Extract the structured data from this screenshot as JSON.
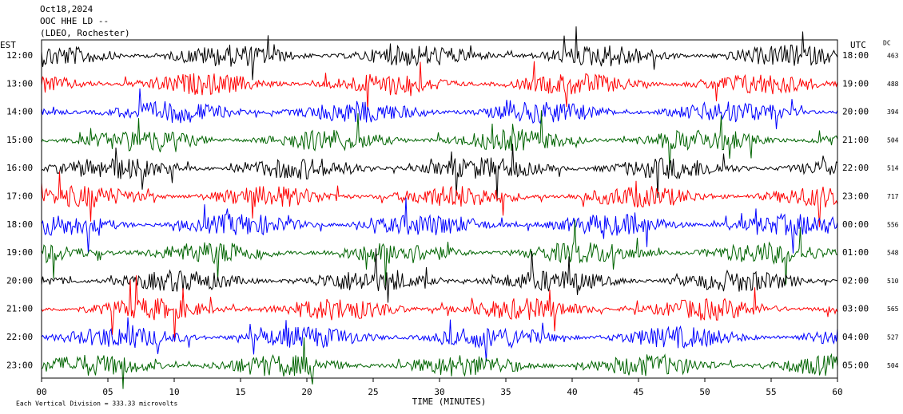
{
  "chart_data": {
    "type": "seismogram",
    "title_lines": [
      "Oct18,2024",
      "OOC HHE LD --",
      "(LDEO, Rochester)"
    ],
    "left_axis_label": "EST",
    "right_axis_label": "UTC",
    "dc_label": "DC",
    "rows": [
      {
        "est": "12:00",
        "utc": "18:00",
        "dc": "463"
      },
      {
        "est": "13:00",
        "utc": "19:00",
        "dc": "488"
      },
      {
        "est": "14:00",
        "utc": "20:00",
        "dc": "394"
      },
      {
        "est": "15:00",
        "utc": "21:00",
        "dc": "504"
      },
      {
        "est": "16:00",
        "utc": "22:00",
        "dc": "514"
      },
      {
        "est": "17:00",
        "utc": "23:00",
        "dc": "717"
      },
      {
        "est": "18:00",
        "utc": "00:00",
        "dc": "556"
      },
      {
        "est": "19:00",
        "utc": "01:00",
        "dc": "548"
      },
      {
        "est": "20:00",
        "utc": "02:00",
        "dc": "510"
      },
      {
        "est": "21:00",
        "utc": "03:00",
        "dc": "565"
      },
      {
        "est": "22:00",
        "utc": "04:00",
        "dc": "527"
      },
      {
        "est": "23:00",
        "utc": "05:00",
        "dc": "504"
      }
    ],
    "trace_colors": [
      "#000000",
      "#ff0000",
      "#0000ff",
      "#006400"
    ],
    "xlim": [
      0,
      60
    ],
    "xticks": [
      {
        "value": 0,
        "label": "00"
      },
      {
        "value": 5,
        "label": "05"
      },
      10,
      15,
      20,
      25,
      30,
      35,
      40,
      45,
      50,
      55,
      60
    ],
    "xlabel": "TIME (MINUTES)",
    "footer": "Each Vertical Division =  333.33 microvolts"
  }
}
